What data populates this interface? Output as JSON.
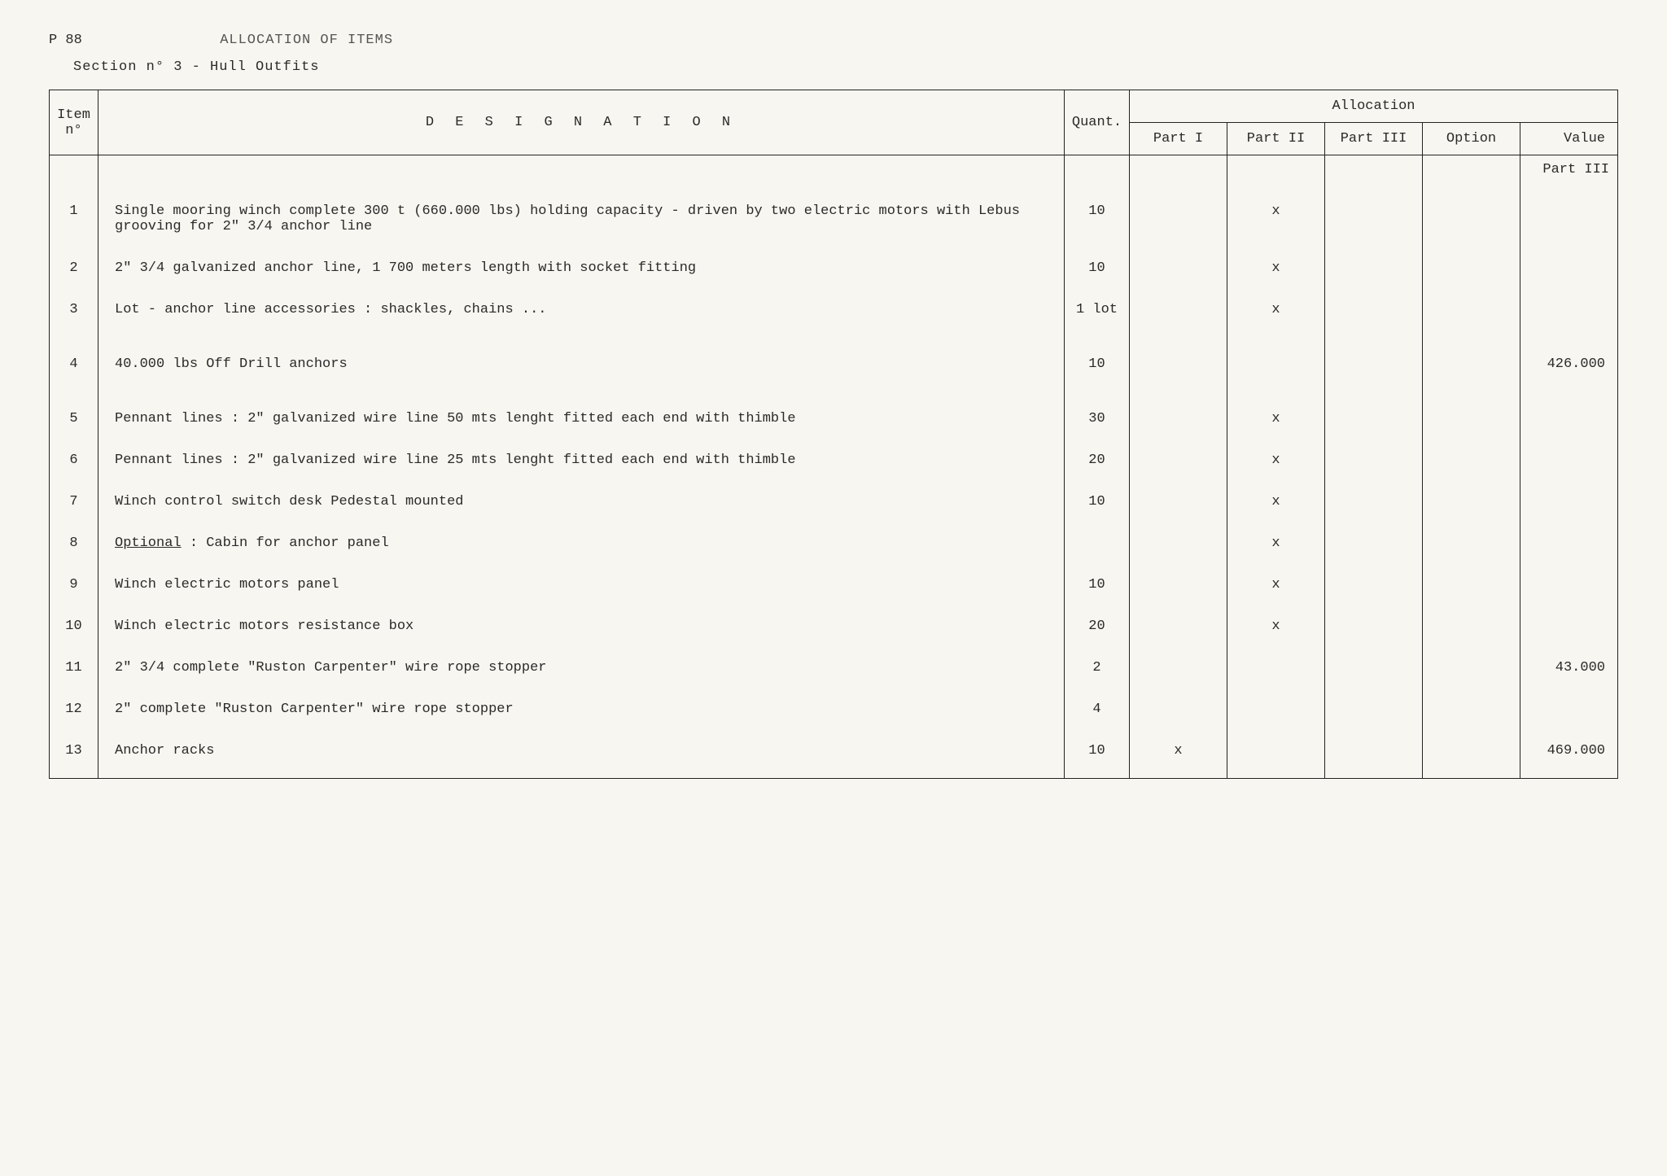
{
  "header": {
    "page_number": "P 88",
    "title": "ALLOCATION OF ITEMS",
    "section": "Section n° 3  -  Hull Outfits"
  },
  "table": {
    "headers": {
      "item_no": "Item n°",
      "designation": "D E S I G N A T I O N",
      "quant": "Quant.",
      "allocation": "Allocation",
      "part1": "Part I",
      "part2": "Part II",
      "part3": "Part III",
      "option": "Option",
      "value": "Value"
    },
    "part3_label": "Part III",
    "rows": [
      {
        "no": "1",
        "designation": "Single mooring winch complete  300 t (660.000 lbs) holding capacity - driven by two electric motors with Lebus grooving for  2\" 3/4  anchor line",
        "quant": "10",
        "part1": "",
        "part2": "x",
        "part3": "",
        "option": "",
        "value": ""
      },
      {
        "no": "2",
        "designation": "2\" 3/4 galvanized anchor line, 1 700 meters length with socket fitting",
        "quant": "10",
        "part1": "",
        "part2": "x",
        "part3": "",
        "option": "",
        "value": ""
      },
      {
        "no": "3",
        "designation": "Lot - anchor line accessories : shackles, chains ...",
        "quant": "1 lot",
        "part1": "",
        "part2": "x",
        "part3": "",
        "option": "",
        "value": ""
      },
      {
        "no": "4",
        "designation": "40.000 lbs  Off Drill anchors",
        "quant": "10",
        "part1": "",
        "part2": "",
        "part3": "",
        "option": "",
        "value": "426.000"
      },
      {
        "no": "5",
        "designation": "Pennant lines : 2\" galvanized wire line 50 mts lenght fitted each end with thimble",
        "quant": "30",
        "part1": "",
        "part2": "x",
        "part3": "",
        "option": "",
        "value": ""
      },
      {
        "no": "6",
        "designation": "Pennant lines : 2\" galvanized wire line  25 mts lenght fitted each end with thimble",
        "quant": "20",
        "part1": "",
        "part2": "x",
        "part3": "",
        "option": "",
        "value": ""
      },
      {
        "no": "7",
        "designation": "Winch control switch desk Pedestal mounted",
        "quant": "10",
        "part1": "",
        "part2": "x",
        "part3": "",
        "option": "",
        "value": ""
      },
      {
        "no": "8",
        "designation_prefix": "Optional",
        "designation_suffix": " :  Cabin for anchor panel",
        "quant": "",
        "part1": "",
        "part2": "x",
        "part3": "",
        "option": "",
        "value": ""
      },
      {
        "no": "9",
        "designation": "Winch electric motors panel",
        "quant": "10",
        "part1": "",
        "part2": "x",
        "part3": "",
        "option": "",
        "value": ""
      },
      {
        "no": "10",
        "designation": "Winch electric motors resistance box",
        "quant": "20",
        "part1": "",
        "part2": "x",
        "part3": "",
        "option": "",
        "value": ""
      },
      {
        "no": "11",
        "designation": "2\" 3/4  complete  \"Ruston Carpenter\"  wire rope stopper",
        "quant": "2",
        "part1": "",
        "part2": "",
        "part3": "",
        "option": "",
        "value": "43.000"
      },
      {
        "no": "12",
        "designation": "2\" complete  \"Ruston Carpenter\"  wire rope stopper",
        "quant": "4",
        "part1": "",
        "part2": "",
        "part3": "",
        "option": "",
        "value": ""
      },
      {
        "no": "13",
        "designation": "Anchor racks",
        "quant": "10",
        "part1": "x",
        "part2": "",
        "part3": "",
        "option": "",
        "value": "469.000"
      }
    ]
  }
}
